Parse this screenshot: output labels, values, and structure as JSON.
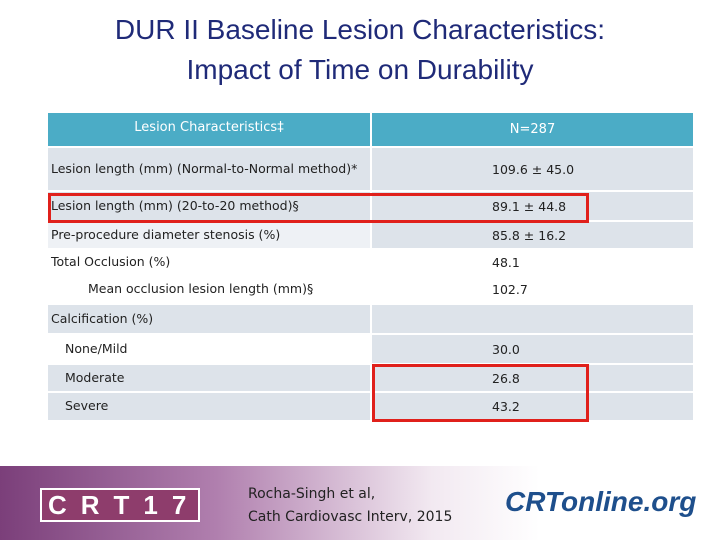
{
  "title": [
    "DUR II Baseline Lesion Characteristics:",
    "Impact of Time on Durability"
  ],
  "table": {
    "header": [
      "Lesion Characteristics‡",
      "N=287"
    ],
    "rows": [
      [
        "Lesion length (mm) (Normal-to-Normal method)*",
        "109.6 ± 45.0"
      ],
      [
        "Lesion length (mm) (20-to-20 method)§",
        "89.1 ± 44.8"
      ],
      [
        "Pre-procedure  diameter stenosis (%)",
        "85.8 ± 16.2"
      ],
      [
        "Total Occlusion (%)",
        "48.1"
      ],
      [
        "Mean occlusion lesion length (mm)§",
        "102.7"
      ],
      [
        "Calcification (%)",
        null
      ],
      [
        "None/Mild",
        "30.0"
      ],
      [
        "Moderate",
        "26.8"
      ],
      [
        "Severe",
        "43.2"
      ]
    ]
  },
  "footer": {
    "logo_left": "CRT17",
    "citation": [
      "Rocha-Singh et al,",
      "Cath Cardiovasc Interv, 2015"
    ],
    "logo_right": "CRTonline.org"
  }
}
